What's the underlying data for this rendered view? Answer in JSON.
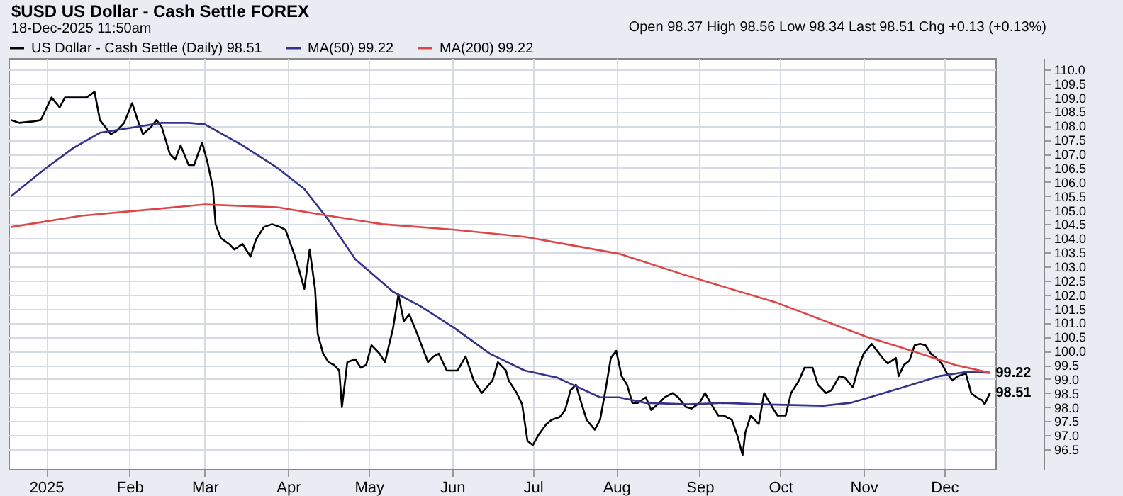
{
  "chart_data": {
    "type": "line",
    "title": "$USD US Dollar - Cash Settle FOREX",
    "subtitle": "18-Dec-2025 11:50am",
    "annotations": [
      "Open 98.37 High 98.56 Low 98.34 Last 98.51 Chg +0.13 (+0.13%)",
      {
        "text": "99.22",
        "x": "2025-12-18",
        "y": 99.22
      },
      "98.51"
    ],
    "xlim": [
      "2024-12-18",
      "2025-12-20"
    ],
    "xticks": [
      {
        "value": "2025-01-01",
        "label": "2025"
      },
      {
        "value": "2025-02-01",
        "label": "Feb"
      },
      {
        "value": "2025-03-01",
        "label": "Mar"
      },
      {
        "value": "2025-04-01",
        "label": "Apr"
      },
      {
        "value": "2025-05-01",
        "label": "May"
      },
      {
        "value": "2025-06-01",
        "label": "Jun"
      },
      {
        "value": "2025-07-01",
        "label": "Jul"
      },
      {
        "value": "2025-08-01",
        "label": "Aug"
      },
      {
        "value": "2025-09-01",
        "label": "Sep"
      },
      {
        "value": "2025-10-01",
        "label": "Oct"
      },
      {
        "value": "2025-11-01",
        "label": "Nov"
      },
      {
        "value": "2025-12-01",
        "label": "Dec"
      }
    ],
    "ylim": [
      95.8,
      110.4
    ],
    "yticks": [
      {
        "value": 96.5,
        "label": "96.5"
      },
      {
        "value": 97,
        "label": "97.0"
      },
      {
        "value": 97.5,
        "label": "97.5"
      },
      {
        "value": 98,
        "label": "98.0"
      },
      {
        "value": 98.5,
        "label": "98.5"
      },
      {
        "value": 99,
        "label": "99.0"
      },
      {
        "value": 99.5,
        "label": "99.5"
      },
      {
        "value": 100,
        "label": "100.0"
      },
      {
        "value": 100.5,
        "label": "100.5"
      },
      {
        "value": 101,
        "label": "101.0"
      },
      {
        "value": 101.5,
        "label": "101.5"
      },
      {
        "value": 102,
        "label": "102.0"
      },
      {
        "value": 102.5,
        "label": "102.5"
      },
      {
        "value": 103,
        "label": "103.0"
      },
      {
        "value": 103.5,
        "label": "103.5"
      },
      {
        "value": 104,
        "label": "104.0"
      },
      {
        "value": 104.5,
        "label": "104.5"
      },
      {
        "value": 105,
        "label": "105.0"
      },
      {
        "value": 105.5,
        "label": "105.5"
      },
      {
        "value": 106,
        "label": "106.0"
      },
      {
        "value": 106.5,
        "label": "106.5"
      },
      {
        "value": 107,
        "label": "107.0"
      },
      {
        "value": 107.5,
        "label": "107.5"
      },
      {
        "value": 108,
        "label": "108.0"
      },
      {
        "value": 108.5,
        "label": "108.5"
      },
      {
        "value": 109,
        "label": "109.0"
      },
      {
        "value": 109.5,
        "label": "109.5"
      },
      {
        "value": 110,
        "label": "110.0"
      }
    ],
    "grid": true,
    "legend": "top left",
    "line_style": "solid",
    "marker": "none",
    "series": [
      {
        "name": "US Dollar - Cash Settle (Daily) 98.51",
        "color": "#000000",
        "x": [
          "2024-12-19",
          "2024-12-22",
          "2024-12-27",
          "2024-12-30",
          "2025-01-01",
          "2025-01-03",
          "2025-01-06",
          "2025-01-08",
          "2025-01-11",
          "2025-01-16",
          "2025-01-19",
          "2025-01-21",
          "2025-01-25",
          "2025-01-27",
          "2025-01-30",
          "2025-02-02",
          "2025-02-04",
          "2025-02-06",
          "2025-02-09",
          "2025-02-11",
          "2025-02-13",
          "2025-02-16",
          "2025-02-18",
          "2025-02-20",
          "2025-02-23",
          "2025-02-25",
          "2025-02-28",
          "2025-03-02",
          "2025-03-04",
          "2025-03-05",
          "2025-03-07",
          "2025-03-10",
          "2025-03-12",
          "2025-03-15",
          "2025-03-18",
          "2025-03-20",
          "2025-03-23",
          "2025-03-26",
          "2025-03-29",
          "2025-03-31",
          "2025-04-03",
          "2025-04-05",
          "2025-04-07",
          "2025-04-09",
          "2025-04-11",
          "2025-04-12",
          "2025-04-14",
          "2025-04-16",
          "2025-04-18",
          "2025-04-20",
          "2025-04-21",
          "2025-04-23",
          "2025-04-26",
          "2025-04-28",
          "2025-04-30",
          "2025-05-02",
          "2025-05-05",
          "2025-05-07",
          "2025-05-10",
          "2025-05-12",
          "2025-05-14",
          "2025-05-16",
          "2025-05-19",
          "2025-05-21",
          "2025-05-23",
          "2025-05-25",
          "2025-05-27",
          "2025-05-30",
          "2025-06-01",
          "2025-06-03",
          "2025-06-06",
          "2025-06-09",
          "2025-06-12",
          "2025-06-16",
          "2025-06-18",
          "2025-06-21",
          "2025-06-22",
          "2025-06-25",
          "2025-06-27",
          "2025-06-29",
          "2025-07-01",
          "2025-07-03",
          "2025-07-06",
          "2025-07-08",
          "2025-07-11",
          "2025-07-13",
          "2025-07-15",
          "2025-07-17",
          "2025-07-19",
          "2025-07-21",
          "2025-07-24",
          "2025-07-26",
          "2025-07-28",
          "2025-07-30",
          "2025-08-01",
          "2025-08-03",
          "2025-08-05",
          "2025-08-07",
          "2025-08-09",
          "2025-08-12",
          "2025-08-14",
          "2025-08-17",
          "2025-08-19",
          "2025-08-22",
          "2025-08-24",
          "2025-08-27",
          "2025-08-29",
          "2025-09-01",
          "2025-09-03",
          "2025-09-06",
          "2025-09-08",
          "2025-09-10",
          "2025-09-13",
          "2025-09-15",
          "2025-09-17",
          "2025-09-18",
          "2025-09-20",
          "2025-09-23",
          "2025-09-25",
          "2025-09-28",
          "2025-09-30",
          "2025-10-03",
          "2025-10-05",
          "2025-10-08",
          "2025-10-10",
          "2025-10-13",
          "2025-10-15",
          "2025-10-18",
          "2025-10-20",
          "2025-10-23",
          "2025-10-25",
          "2025-10-28",
          "2025-10-30",
          "2025-11-01",
          "2025-11-04",
          "2025-11-06",
          "2025-11-08",
          "2025-11-10",
          "2025-11-13",
          "2025-11-14",
          "2025-11-16",
          "2025-11-18",
          "2025-11-20",
          "2025-11-22",
          "2025-11-24",
          "2025-11-26",
          "2025-11-28",
          "2025-11-30",
          "2025-12-02",
          "2025-12-04",
          "2025-12-06",
          "2025-12-09",
          "2025-12-11",
          "2025-12-13",
          "2025-12-15",
          "2025-12-16",
          "2025-12-18"
        ],
        "values": [
          108.2,
          108.1,
          108.15,
          108.2,
          108.6,
          109.0,
          108.65,
          109.0,
          109.0,
          109.0,
          109.2,
          108.2,
          107.7,
          107.8,
          108.1,
          108.8,
          108.2,
          107.7,
          107.95,
          108.2,
          107.95,
          107.0,
          106.8,
          107.3,
          106.6,
          106.6,
          107.4,
          106.7,
          105.8,
          104.5,
          104.0,
          103.8,
          103.6,
          103.8,
          103.35,
          103.95,
          104.4,
          104.5,
          104.4,
          104.3,
          103.5,
          102.9,
          102.2,
          103.6,
          102.2,
          100.6,
          99.9,
          99.6,
          99.5,
          99.3,
          98.0,
          99.6,
          99.7,
          99.4,
          99.5,
          100.2,
          99.9,
          99.6,
          100.8,
          102.0,
          101.05,
          101.3,
          100.6,
          100.1,
          99.6,
          99.8,
          99.9,
          99.3,
          99.3,
          99.3,
          99.8,
          98.95,
          98.5,
          98.95,
          99.6,
          99.3,
          98.95,
          98.5,
          98.1,
          96.8,
          96.65,
          97.0,
          97.4,
          97.55,
          97.65,
          97.9,
          98.6,
          98.8,
          98.15,
          97.55,
          97.2,
          97.55,
          98.6,
          99.75,
          100.0,
          99.1,
          98.8,
          98.15,
          98.15,
          98.35,
          97.9,
          98.15,
          98.35,
          98.5,
          98.35,
          98.0,
          97.95,
          98.15,
          98.5,
          98.0,
          97.7,
          97.7,
          97.55,
          97.0,
          96.3,
          97.1,
          97.7,
          97.4,
          98.5,
          98.0,
          97.7,
          97.7,
          98.5,
          98.95,
          99.4,
          99.4,
          98.8,
          98.5,
          98.6,
          99.1,
          99.05,
          98.7,
          99.4,
          99.9,
          100.25,
          100.0,
          99.75,
          99.55,
          99.75,
          99.1,
          99.5,
          99.65,
          100.2,
          100.25,
          100.2,
          99.9,
          99.75,
          99.55,
          99.2,
          98.95,
          99.1,
          99.2,
          98.5,
          98.35,
          98.25,
          98.1,
          98.51
        ]
      },
      {
        "name": "MA(50) 99.22",
        "color": "#33338c",
        "x": [
          "2024-12-19",
          "2025-01-01",
          "2025-01-11",
          "2025-01-21",
          "2025-01-31",
          "2025-02-13",
          "2025-02-23",
          "2025-03-01",
          "2025-03-15",
          "2025-03-28",
          "2025-04-07",
          "2025-04-16",
          "2025-04-26",
          "2025-05-10",
          "2025-05-20",
          "2025-06-02",
          "2025-06-15",
          "2025-06-28",
          "2025-07-10",
          "2025-07-26",
          "2025-08-02",
          "2025-08-12",
          "2025-08-28",
          "2025-09-10",
          "2025-09-24",
          "2025-10-17",
          "2025-10-27",
          "2025-11-05",
          "2025-11-19",
          "2025-11-29",
          "2025-12-09",
          "2025-12-18"
        ],
        "values": [
          105.5,
          106.5,
          107.2,
          107.75,
          107.9,
          108.1,
          108.1,
          108.05,
          107.3,
          106.5,
          105.75,
          104.65,
          103.25,
          102.1,
          101.6,
          100.8,
          99.9,
          99.3,
          99.05,
          98.35,
          98.35,
          98.15,
          98.1,
          98.15,
          98.1,
          98.05,
          98.15,
          98.4,
          98.8,
          99.1,
          99.25,
          99.22
        ]
      },
      {
        "name": "MA(200) 99.22",
        "color": "#e04545",
        "x": [
          "2024-12-19",
          "2025-01-14",
          "2025-03-01",
          "2025-03-28",
          "2025-04-16",
          "2025-05-06",
          "2025-06-02",
          "2025-06-28",
          "2025-08-02",
          "2025-08-28",
          "2025-09-30",
          "2025-11-02",
          "2025-11-19",
          "2025-12-05",
          "2025-12-18"
        ],
        "values": [
          104.4,
          104.8,
          105.2,
          105.1,
          104.8,
          104.5,
          104.3,
          104.05,
          103.45,
          102.65,
          101.7,
          100.5,
          100.0,
          99.5,
          99.22
        ]
      }
    ]
  }
}
